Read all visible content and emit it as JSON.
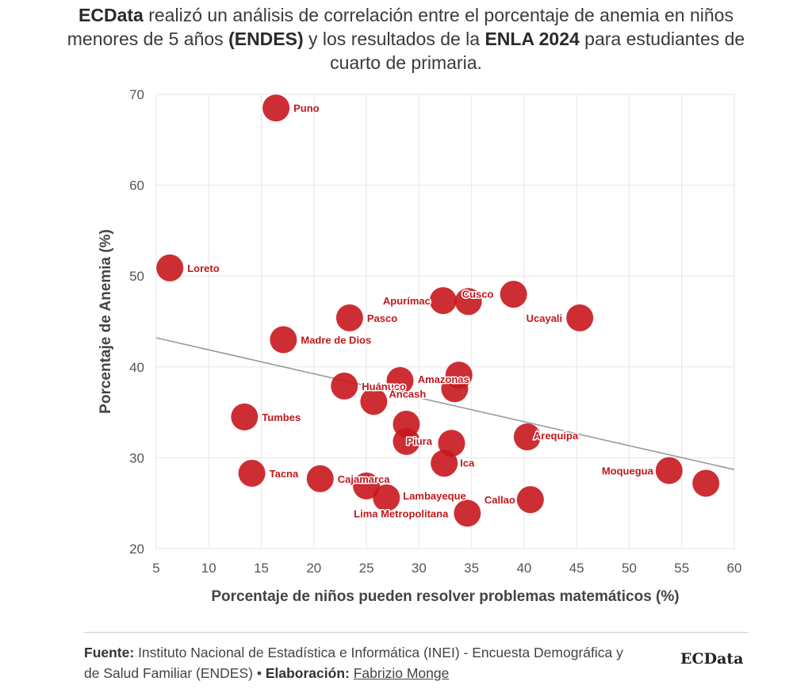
{
  "title": {
    "p1": "ECData",
    "p2": " realizó un análisis de correlación entre el porcentaje de anemia en niños menores de 5 años ",
    "p3": "(ENDES)",
    "p4": " y los resultados de la ",
    "p5": "ENLA 2024",
    "p6": " para estudiantes de cuarto de primaria."
  },
  "chart_data": {
    "type": "scatter",
    "xlabel": "Porcentaje de niños pueden resolver problemas matemáticos (%)",
    "ylabel": "Porcentaje de Anemia (%)",
    "xlim": [
      5,
      60
    ],
    "ylim": [
      20,
      70
    ],
    "xticks": [
      "5",
      "10",
      "15",
      "20",
      "25",
      "30",
      "35",
      "40",
      "45",
      "50",
      "55",
      "60"
    ],
    "yticks": [
      "20",
      "30",
      "40",
      "50",
      "60",
      "70"
    ],
    "grid": true,
    "point_color": "#c8171d",
    "trendline": {
      "x": [
        5,
        60
      ],
      "y": [
        43.2,
        28.7
      ],
      "color": "#9a9a9a"
    },
    "points": [
      {
        "label": "Puno",
        "x": 16.4,
        "y": 68.5
      },
      {
        "label": "Loreto",
        "x": 6.3,
        "y": 50.9
      },
      {
        "label": "Apurímac",
        "x": 32.3,
        "y": 47.3
      },
      {
        "label": "Cusco",
        "x": 34.7,
        "y": 47.2
      },
      {
        "label": "",
        "x": 39.0,
        "y": 48.0
      },
      {
        "label": "Ucayali",
        "x": 45.3,
        "y": 45.4
      },
      {
        "label": "Pasco",
        "x": 23.4,
        "y": 45.4
      },
      {
        "label": "Madre de Dios",
        "x": 17.1,
        "y": 43.0
      },
      {
        "label": "Amazonas",
        "x": 33.8,
        "y": 39.1
      },
      {
        "label": "",
        "x": 28.2,
        "y": 38.5
      },
      {
        "label": "",
        "x": 33.4,
        "y": 37.6
      },
      {
        "label": "Huánuco",
        "x": 22.9,
        "y": 37.9
      },
      {
        "label": "Áncash",
        "x": 25.7,
        "y": 36.2
      },
      {
        "label": "Tumbes",
        "x": 13.4,
        "y": 34.5
      },
      {
        "label": "",
        "x": 28.8,
        "y": 33.7
      },
      {
        "label": "Arequipa",
        "x": 40.3,
        "y": 32.3
      },
      {
        "label": "Piura",
        "x": 28.8,
        "y": 31.8
      },
      {
        "label": "",
        "x": 33.1,
        "y": 31.6
      },
      {
        "label": "Ica",
        "x": 32.4,
        "y": 29.4
      },
      {
        "label": "Tacna",
        "x": 14.1,
        "y": 28.3
      },
      {
        "label": "Cajamarca",
        "x": 20.6,
        "y": 27.7
      },
      {
        "label": "",
        "x": 25.0,
        "y": 26.9
      },
      {
        "label": "Lambayeque",
        "x": 26.9,
        "y": 25.6
      },
      {
        "label": "Callao",
        "x": 40.6,
        "y": 25.4
      },
      {
        "label": "Lima Metropolitana",
        "x": 34.6,
        "y": 23.9
      },
      {
        "label": "Moquegua",
        "x": 53.8,
        "y": 28.6
      },
      {
        "label": "",
        "x": 57.3,
        "y": 27.2
      }
    ]
  },
  "footer": {
    "source_label": "Fuente:",
    "source_text": " Instituto Nacional de Estadística e Informática (INEI) - Encuesta Demográfica y de Salud Familiar (ENDES) • ",
    "credit_label": "Elaboración:",
    "credit_name": "Fabrizio Monge"
  },
  "brand": "ECData"
}
